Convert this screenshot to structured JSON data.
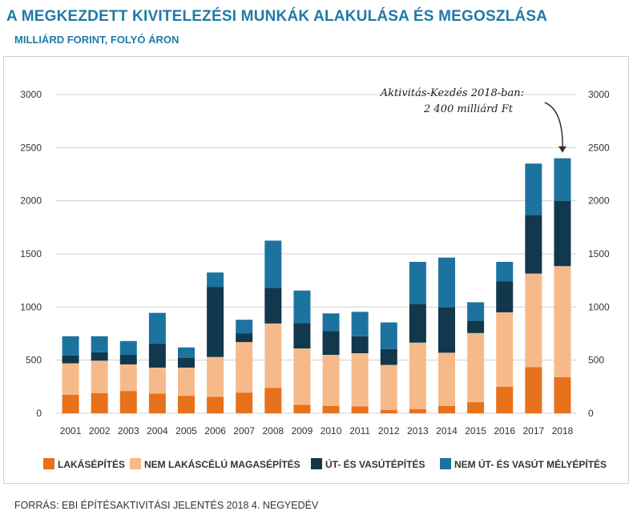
{
  "header": {
    "title": "A MEGKEZDETT KIVITELEZÉSI MUNKÁK ALAKULÁSA ÉS MEGOSZLÁSA",
    "subtitle": "MILLIÁRD FORINT, FOLYÓ ÁRON"
  },
  "footer": {
    "source": "FORRÁS: EBI ÉPÍTÉSAKTIVITÁSI JELENTÉS 2018 4. NEGYEDÉV"
  },
  "chart_data": {
    "type": "bar",
    "stacked": true,
    "categories": [
      "2001",
      "2002",
      "2003",
      "2004",
      "2005",
      "2006",
      "2007",
      "2008",
      "2009",
      "2010",
      "2011",
      "2012",
      "2013",
      "2014",
      "2015",
      "2016",
      "2017",
      "2018"
    ],
    "series": [
      {
        "name": "LAKÁSÉPÍTÉS",
        "color": "#e8711c",
        "values": [
          175,
          190,
          210,
          185,
          165,
          155,
          195,
          240,
          80,
          70,
          65,
          30,
          40,
          70,
          105,
          250,
          435,
          340
        ]
      },
      {
        "name": "NEM LAKÁSCÉLÚ MAGASÉPÍTÉS",
        "color": "#f6ba8a",
        "values": [
          295,
          305,
          250,
          245,
          265,
          375,
          475,
          605,
          530,
          480,
          500,
          425,
          625,
          500,
          650,
          700,
          880,
          1045
        ]
      },
      {
        "name": "ÚT- ÉS VASÚTÉPÍTÉS",
        "color": "#11384d",
        "values": [
          75,
          80,
          90,
          225,
          90,
          660,
          80,
          335,
          240,
          225,
          160,
          150,
          365,
          425,
          115,
          290,
          550,
          615
        ]
      },
      {
        "name": "NEM ÚT- ÉS VASÚT MÉLYÉPÍTÉS",
        "color": "#1d73a0",
        "values": [
          180,
          150,
          130,
          290,
          100,
          135,
          130,
          445,
          305,
          165,
          230,
          250,
          395,
          470,
          175,
          185,
          485,
          400
        ]
      }
    ],
    "ylim": [
      0,
      3000
    ],
    "yticks": [
      "0",
      "500",
      "1000",
      "1500",
      "2000",
      "2500",
      "3000"
    ],
    "grid": true,
    "legend_position": "bottom",
    "annotation": {
      "line1": "Aktivitás-Kezdés 2018-ban:",
      "line2": "2 400 milliárd Ft",
      "target": "2018"
    }
  }
}
